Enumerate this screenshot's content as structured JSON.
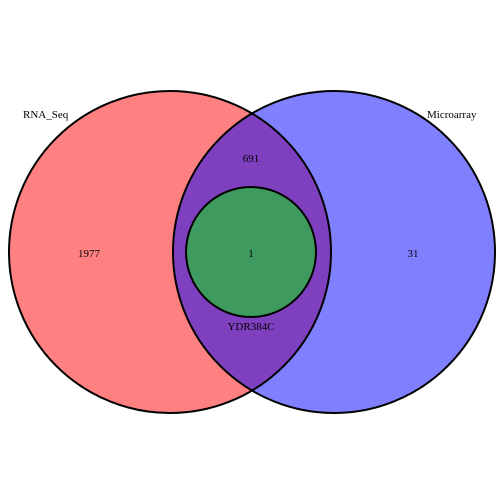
{
  "chart_data": {
    "type": "venn",
    "sets": [
      {
        "name": "RNA_Seq",
        "color": "#ff8080"
      },
      {
        "name": "Microarray",
        "color": "#8080ff"
      }
    ],
    "regions": {
      "rna_seq_only": "1977",
      "microarray_only": "31",
      "intersection": "691",
      "inner_subset": "1"
    },
    "inner_subset_label": "YDR384C",
    "colors": {
      "overlap": "#7f40c0",
      "inner": "#3f9a60",
      "stroke": "#000000"
    }
  }
}
